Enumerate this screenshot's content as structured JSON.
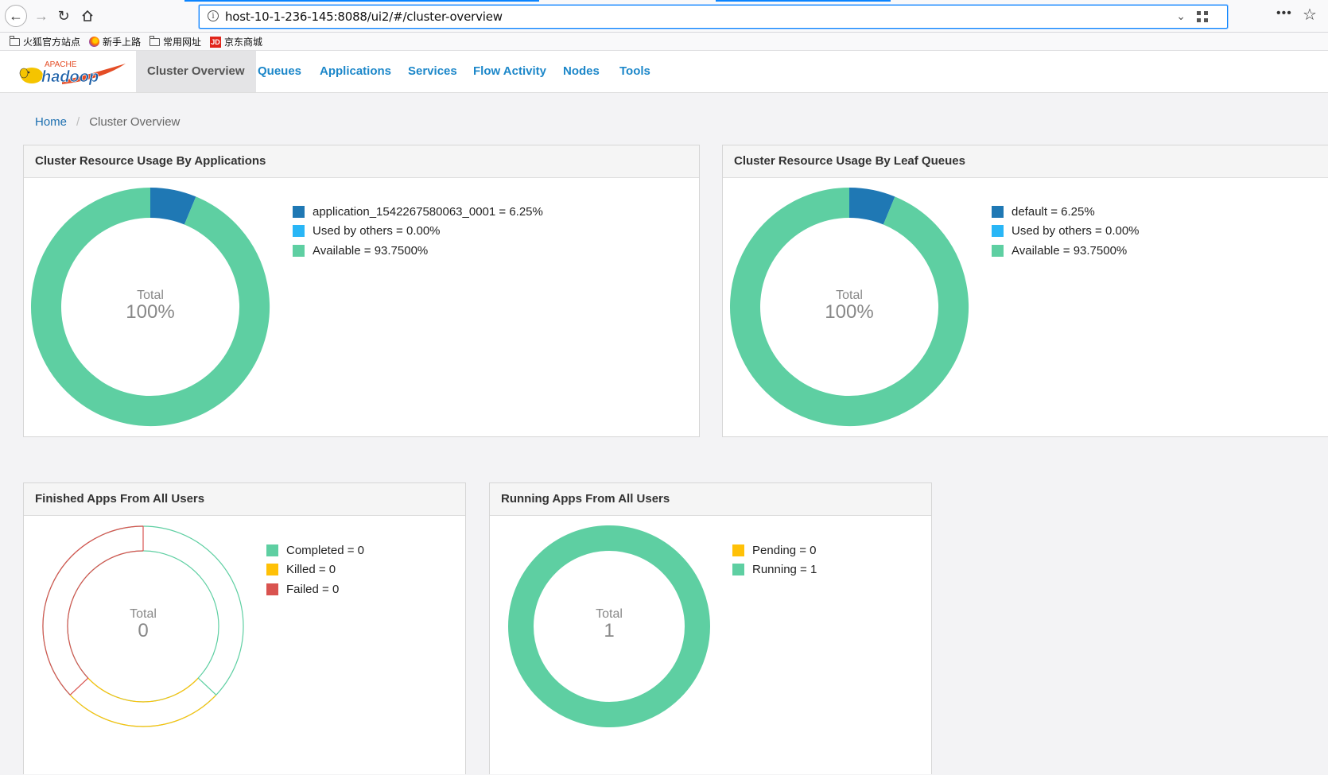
{
  "browser": {
    "url": "host-10-1-236-145:8088/ui2/#/cluster-overview",
    "bookmarks": [
      "火狐官方站点",
      "新手上路",
      "常用网址",
      "京东商城"
    ]
  },
  "app": {
    "logo_top": "APACHE",
    "logo_main": "hadoop",
    "tabs": [
      "Cluster Overview",
      "Queues",
      "Applications",
      "Services",
      "Flow Activity",
      "Nodes",
      "Tools"
    ],
    "active_tab": "Cluster Overview"
  },
  "breadcrumb": {
    "home": "Home",
    "current": "Cluster Overview"
  },
  "colors": {
    "blue": "#1f78b4",
    "light_blue": "#29b6f6",
    "green": "#5ecfa2",
    "yellow": "#ffc107",
    "red": "#d9534f"
  },
  "panels": {
    "apps_usage": {
      "title": "Cluster Resource Usage By Applications",
      "total_label": "Total",
      "total_value": "100%",
      "legend": [
        "application_1542267580063_0001 = 6.25%",
        "Used by others = 0.00%",
        "Available = 93.7500%"
      ]
    },
    "queue_usage": {
      "title": "Cluster Resource Usage By Leaf Queues",
      "total_label": "Total",
      "total_value": "100%",
      "legend": [
        "default = 6.25%",
        "Used by others = 0.00%",
        "Available = 93.7500%"
      ]
    },
    "finished_apps": {
      "title": "Finished Apps From All Users",
      "total_label": "Total",
      "total_value": "0",
      "legend": [
        "Completed = 0",
        "Killed = 0",
        "Failed = 0"
      ]
    },
    "running_apps": {
      "title": "Running Apps From All Users",
      "total_label": "Total",
      "total_value": "1",
      "legend": [
        "Pending = 0",
        "Running = 1"
      ]
    }
  },
  "chart_data": [
    {
      "type": "pie",
      "title": "Cluster Resource Usage By Applications",
      "categories": [
        "application_1542267580063_0001",
        "Used by others",
        "Available"
      ],
      "values": [
        6.25,
        0.0,
        93.75
      ]
    },
    {
      "type": "pie",
      "title": "Cluster Resource Usage By Leaf Queues",
      "categories": [
        "default",
        "Used by others",
        "Available"
      ],
      "values": [
        6.25,
        0.0,
        93.75
      ]
    },
    {
      "type": "pie",
      "title": "Finished Apps From All Users",
      "categories": [
        "Completed",
        "Killed",
        "Failed"
      ],
      "values": [
        0,
        0,
        0
      ]
    },
    {
      "type": "pie",
      "title": "Running Apps From All Users",
      "categories": [
        "Pending",
        "Running"
      ],
      "values": [
        0,
        1
      ]
    }
  ]
}
